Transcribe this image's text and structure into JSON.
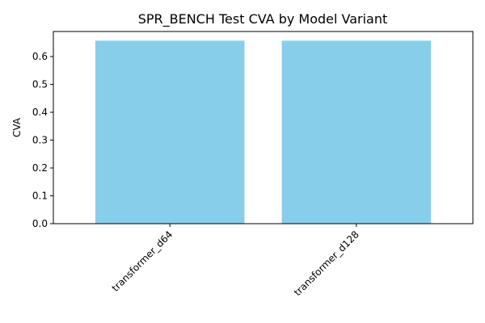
{
  "chart_data": {
    "type": "bar",
    "title": "SPR_BENCH Test CVA by Model Variant",
    "xlabel": "",
    "ylabel": "CVA",
    "categories": [
      "transformer_d64",
      "transformer_d128"
    ],
    "values": [
      0.657,
      0.657
    ],
    "ylim": [
      0,
      0.69
    ],
    "yticks": [
      "0.0",
      "0.1",
      "0.2",
      "0.3",
      "0.4",
      "0.5",
      "0.6"
    ],
    "bar_color": "#87CEEB",
    "grid": false,
    "legend": "none"
  }
}
